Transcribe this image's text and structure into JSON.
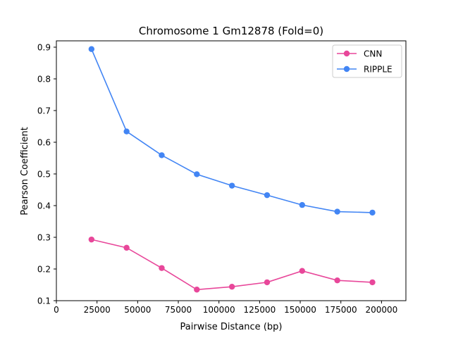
{
  "chart_data": {
    "type": "line",
    "title": "Chromosome 1 Gm12878 (Fold=0)",
    "xlabel": "Pairwise Distance (bp)",
    "ylabel": "Pearson Coefficient",
    "xlim": [
      0,
      215000
    ],
    "ylim": [
      0.1,
      0.92
    ],
    "x_ticks": [
      0,
      25000,
      50000,
      75000,
      100000,
      125000,
      150000,
      175000,
      200000
    ],
    "y_ticks": [
      0.1,
      0.2,
      0.3,
      0.4,
      0.5,
      0.6,
      0.7,
      0.8,
      0.9
    ],
    "x_tick_labels": [
      "0",
      "25000",
      "50000",
      "75000",
      "100000",
      "125000",
      "150000",
      "175000",
      "200000"
    ],
    "y_tick_labels": [
      "0.1",
      "0.2",
      "0.3",
      "0.4",
      "0.5",
      "0.6",
      "0.7",
      "0.8",
      "0.9"
    ],
    "grid": false,
    "legend_position": "top-right",
    "x": [
      21600,
      43200,
      64800,
      86400,
      108000,
      129600,
      151200,
      172800,
      194400
    ],
    "series": [
      {
        "name": "CNN",
        "color": "#e8479a",
        "marker": "circle",
        "values": [
          0.293,
          0.267,
          0.203,
          0.135,
          0.144,
          0.158,
          0.194,
          0.164,
          0.158
        ]
      },
      {
        "name": "RIPPLE",
        "color": "#4285f4",
        "marker": "circle",
        "values": [
          0.894,
          0.634,
          0.559,
          0.499,
          0.463,
          0.433,
          0.402,
          0.381,
          0.378
        ]
      }
    ]
  }
}
